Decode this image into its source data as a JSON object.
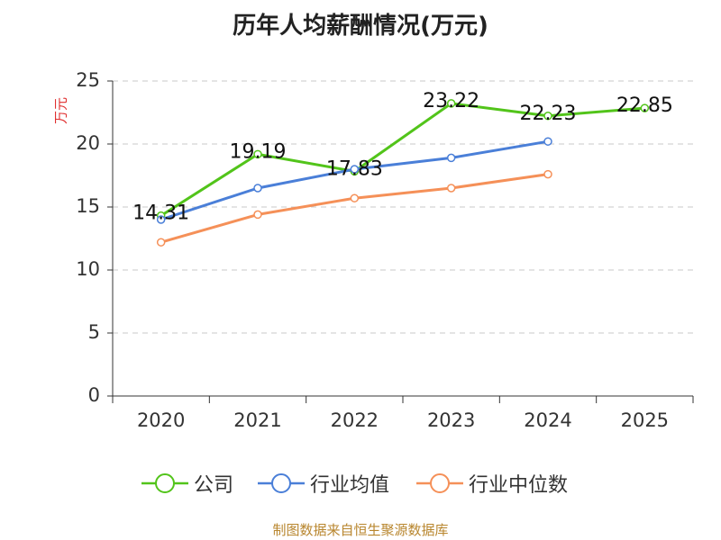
{
  "page": {
    "title": "历年人均薪酬情况(万元)",
    "source": "制图数据来自恒生聚源数据库"
  },
  "chart_data": {
    "type": "line",
    "title": "历年人均薪酬情况(万元)",
    "ylabel": "万元",
    "xlabel": "",
    "categories": [
      "2020",
      "2021",
      "2022",
      "2023",
      "2024",
      "2025"
    ],
    "ylim": [
      0,
      25
    ],
    "yticks": [
      0,
      5,
      10,
      15,
      20,
      25
    ],
    "grid": true,
    "legend_position": "bottom",
    "series": [
      {
        "name": "公司",
        "color": "#52c41a",
        "values": [
          14.31,
          19.19,
          17.83,
          23.22,
          22.23,
          22.85
        ],
        "data_labels": [
          "14.31",
          "19.19",
          "17.83",
          "23.22",
          "22.23",
          "22.85"
        ]
      },
      {
        "name": "行业均值",
        "color": "#4a7fd8",
        "values": [
          14.0,
          16.5,
          18.0,
          18.9,
          20.2,
          null
        ]
      },
      {
        "name": "行业中位数",
        "color": "#f59058",
        "values": [
          12.2,
          14.4,
          15.7,
          16.5,
          17.6,
          null
        ]
      }
    ]
  }
}
